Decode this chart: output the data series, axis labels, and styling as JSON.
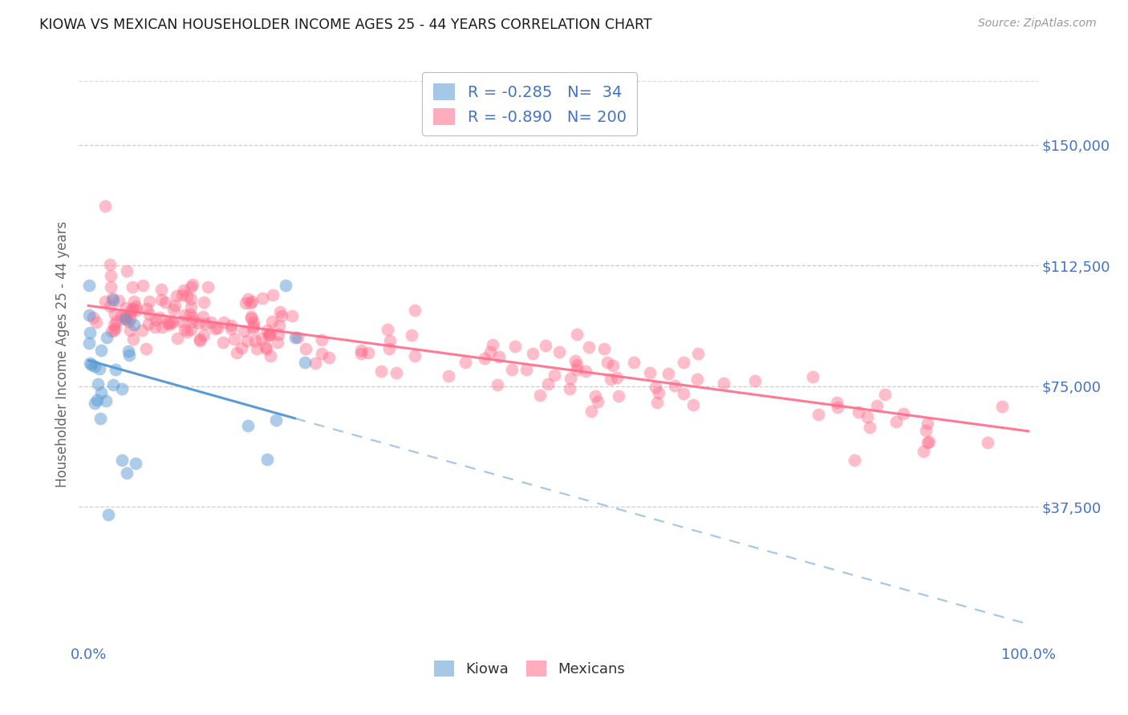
{
  "title": "KIOWA VS MEXICAN HOUSEHOLDER INCOME AGES 25 - 44 YEARS CORRELATION CHART",
  "source": "Source: ZipAtlas.com",
  "ylabel": "Householder Income Ages 25 - 44 years",
  "ytick_labels": [
    "$37,500",
    "$75,000",
    "$112,500",
    "$150,000"
  ],
  "ytick_values": [
    37500,
    75000,
    112500,
    150000
  ],
  "ylim": [
    -5000,
    175000
  ],
  "xlim": [
    -0.01,
    1.01
  ],
  "kiowa_R": -0.285,
  "kiowa_N": 34,
  "mexican_R": -0.89,
  "mexican_N": 200,
  "legend_label1": "Kiowa",
  "legend_label2": "Mexicans",
  "kiowa_color": "#5B9BD5",
  "mexican_color": "#FF6B8A",
  "background_color": "#FFFFFF",
  "grid_color": "#C8C8C8",
  "title_color": "#1A1A1A",
  "source_color": "#999999",
  "axis_label_color": "#4472C4",
  "ylabel_color": "#666666"
}
